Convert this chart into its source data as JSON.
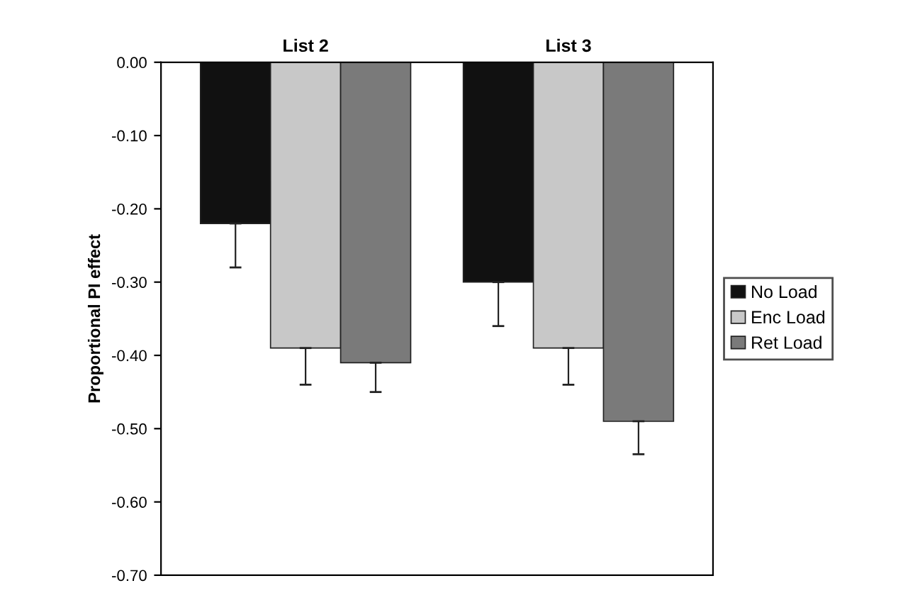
{
  "chart_data": {
    "type": "bar",
    "ylabel": "Proportional PI effect",
    "categories": [
      "List 2",
      "List 3"
    ],
    "series": [
      {
        "name": "No Load",
        "color": "#111111",
        "values": [
          -0.22,
          -0.3
        ],
        "errors": [
          [
            -0.28,
            -0.22
          ],
          [
            -0.36,
            -0.3
          ]
        ]
      },
      {
        "name": "Enc Load",
        "color": "#c8c8c8",
        "values": [
          -0.39,
          -0.39
        ],
        "errors": [
          [
            -0.44,
            -0.39
          ],
          [
            -0.44,
            -0.39
          ]
        ]
      },
      {
        "name": "Ret Load",
        "color": "#7a7a7a",
        "values": [
          -0.41,
          -0.49
        ],
        "errors": [
          [
            -0.45,
            -0.41
          ],
          [
            -0.535,
            -0.49
          ]
        ]
      }
    ],
    "ylim": [
      -0.7,
      0.0
    ],
    "yticks": [
      {
        "value": -0.7,
        "label": "-0.70"
      },
      {
        "value": -0.6,
        "label": "-0.60"
      },
      {
        "value": -0.5,
        "label": "-0.50"
      },
      {
        "value": -0.4,
        "label": "-0.40"
      },
      {
        "value": -0.3,
        "label": "-0.30"
      },
      {
        "value": -0.2,
        "label": "-0.20"
      },
      {
        "value": -0.1,
        "label": "-0.10"
      },
      {
        "value": 0,
        "label": "0.00"
      }
    ],
    "grid": false,
    "legend": "right"
  }
}
